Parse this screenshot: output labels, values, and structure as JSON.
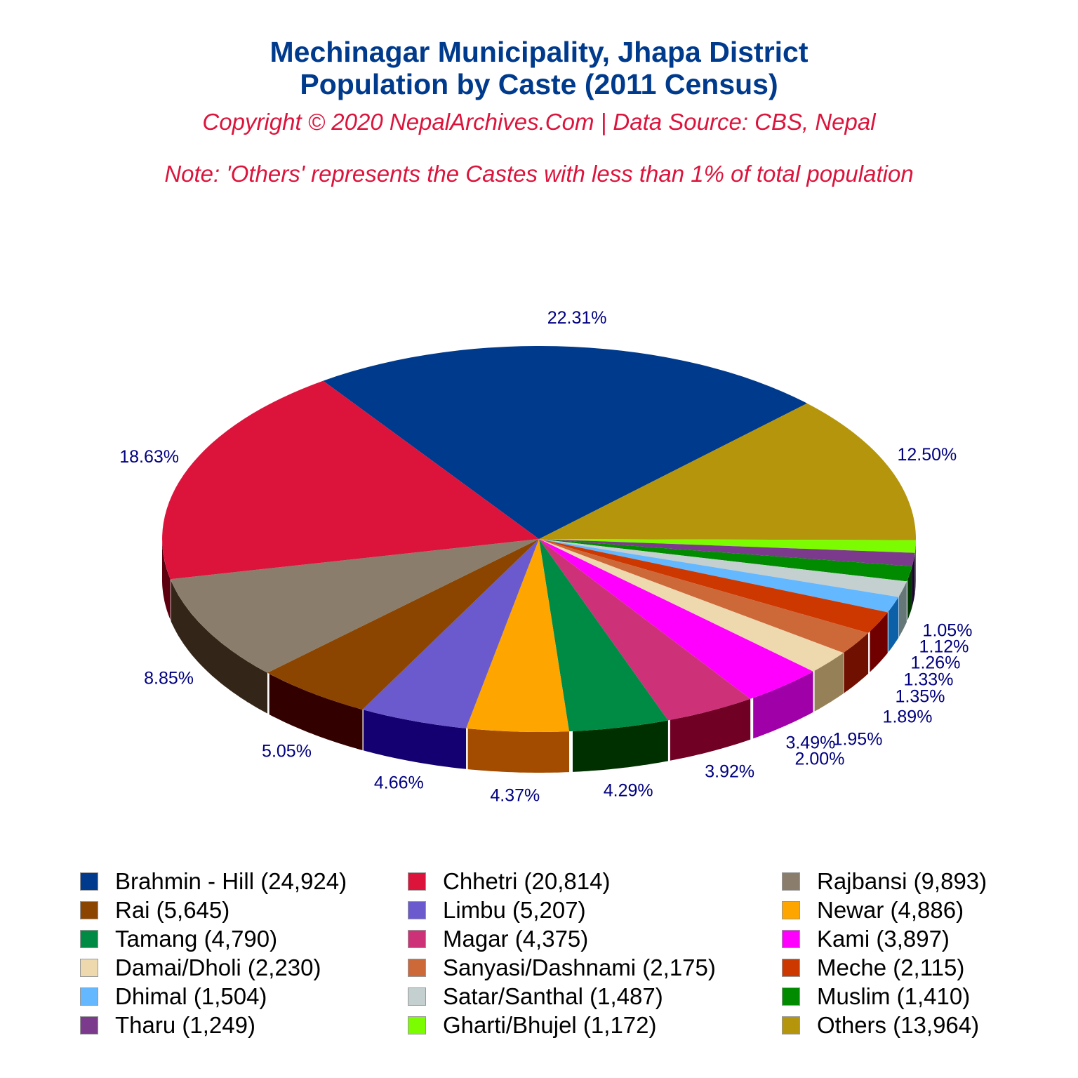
{
  "header": {
    "title_line1": "Mechinagar Municipality, Jhapa District",
    "title_line2": "Population by Caste (2011 Census)",
    "copyright": "Copyright © 2020 NepalArchives.Com | Data Source: CBS, Nepal",
    "note": "Note: 'Others' represents the Castes with less than 1% of total population"
  },
  "chart_data": {
    "type": "pie",
    "title": "Mechinagar Municipality, Jhapa District Population by Caste (2011 Census)",
    "subtitle": "Copyright © 2020 NepalArchives.Com | Data Source: CBS, Nepal",
    "annotation": "Note: 'Others' represents the Castes with less than 1% of total population",
    "style": "3d",
    "legend_position": "bottom",
    "categories": [
      "Brahmin - Hill",
      "Others",
      "Gharti/Bhujel",
      "Tharu",
      "Muslim",
      "Satar/Santhal",
      "Dhimal",
      "Meche",
      "Sanyasi/Dashnami",
      "Damai/Dholi",
      "Kami",
      "Magar",
      "Tamang",
      "Newar",
      "Limbu",
      "Rai",
      "Rajbansi",
      "Chhetri"
    ],
    "values": [
      24924,
      13964,
      1172,
      1249,
      1410,
      1487,
      1504,
      2115,
      2175,
      2230,
      3897,
      4375,
      4790,
      4886,
      5207,
      5645,
      9893,
      20814
    ],
    "percent_labels": [
      "22.31%",
      "12.50%",
      "1.05%",
      "1.12%",
      "1.26%",
      "1.33%",
      "1.35%",
      "1.89%",
      "1.95%",
      "2.00%",
      "3.49%",
      "3.92%",
      "4.29%",
      "4.37%",
      "4.66%",
      "5.05%",
      "8.85%",
      "18.63%"
    ],
    "colors": [
      "#003a8c",
      "#b5950b",
      "#7cfc00",
      "#7b3a8b",
      "#008b00",
      "#c4cfcf",
      "#63b8ff",
      "#cd3700",
      "#cd6839",
      "#eed8ae",
      "#ff00ff",
      "#cd3278",
      "#008b45",
      "#ffa500",
      "#6a5acd",
      "#8b4500",
      "#8b7d6b",
      "#dc143c"
    ],
    "side_colors": [
      "#002060",
      "#5c4400",
      "#3c8c00",
      "#1e0033",
      "#003800",
      "#667777",
      "#0b60a8",
      "#700000",
      "#701000",
      "#968057",
      "#a000a8",
      "#700024",
      "#003000",
      "#a34c00",
      "#140070",
      "#330000",
      "#332518",
      "#5c0010"
    ]
  },
  "legend": [
    {
      "label": "Brahmin - Hill (24,924)",
      "color": "#003a8c"
    },
    {
      "label": "Chhetri (20,814)",
      "color": "#dc143c"
    },
    {
      "label": "Rajbansi (9,893)",
      "color": "#8b7d6b"
    },
    {
      "label": "Rai (5,645)",
      "color": "#8b4500"
    },
    {
      "label": "Limbu (5,207)",
      "color": "#6a5acd"
    },
    {
      "label": "Newar (4,886)",
      "color": "#ffa500"
    },
    {
      "label": "Tamang (4,790)",
      "color": "#008b45"
    },
    {
      "label": "Magar (4,375)",
      "color": "#cd3278"
    },
    {
      "label": "Kami (3,897)",
      "color": "#ff00ff"
    },
    {
      "label": "Damai/Dholi (2,230)",
      "color": "#eed8ae"
    },
    {
      "label": "Sanyasi/Dashnami (2,175)",
      "color": "#cd6839"
    },
    {
      "label": "Meche (2,115)",
      "color": "#cd3700"
    },
    {
      "label": "Dhimal (1,504)",
      "color": "#63b8ff"
    },
    {
      "label": "Satar/Santhal (1,487)",
      "color": "#c4cfcf"
    },
    {
      "label": "Muslim (1,410)",
      "color": "#008b00"
    },
    {
      "label": "Tharu (1,249)",
      "color": "#7b3a8b"
    },
    {
      "label": "Gharti/Bhujel (1,172)",
      "color": "#7cfc00"
    },
    {
      "label": "Others (13,964)",
      "color": "#b5950b"
    }
  ]
}
